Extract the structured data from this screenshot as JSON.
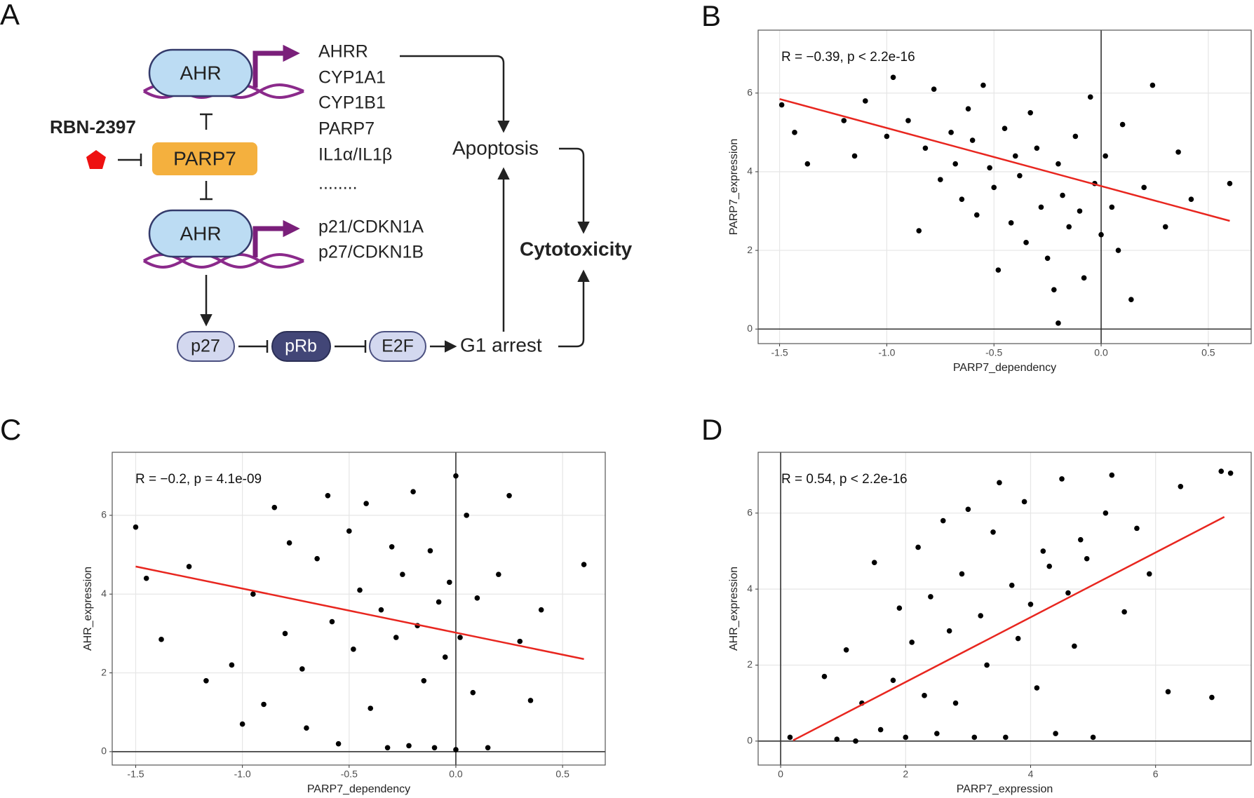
{
  "panel_labels": [
    "A",
    "B",
    "C",
    "D"
  ],
  "diagram": {
    "drug": "RBN-2397",
    "ahr_top": "AHR",
    "parp7": "PARP7",
    "ahr_bottom": "AHR",
    "genes_top": [
      "AHRR",
      "CYP1A1",
      "CYP1B1",
      "PARP7",
      "IL1α/IL1β",
      "........"
    ],
    "genes_bottom": [
      "p21/CDKN1A",
      "p27/CDKN1B"
    ],
    "pathway": [
      "p27",
      "pRb",
      "E2F",
      "G1 arrest"
    ],
    "apoptosis": "Apoptosis",
    "cytotoxicity": "Cytotoxicity"
  },
  "chart_data": [
    {
      "type": "scatter",
      "annotation": "R = −0.39, p < 2.2e-16",
      "x_label": "PARP7_dependency",
      "y_label": "PARP7_expression",
      "x": [
        -1.49,
        -1.43,
        -1.37,
        -1.2,
        -1.15,
        -1.1,
        -1.0,
        -0.97,
        -0.9,
        -0.85,
        -0.82,
        -0.78,
        -0.75,
        -0.7,
        -0.68,
        -0.65,
        -0.62,
        -0.6,
        -0.58,
        -0.55,
        -0.52,
        -0.5,
        -0.48,
        -0.45,
        -0.42,
        -0.4,
        -0.38,
        -0.35,
        -0.33,
        -0.3,
        -0.28,
        -0.25,
        -0.22,
        -0.2,
        -0.2,
        -0.18,
        -0.15,
        -0.12,
        -0.1,
        -0.08,
        -0.05,
        -0.03,
        0.0,
        0.02,
        0.05,
        0.08,
        0.1,
        0.14,
        0.2,
        0.24,
        0.3,
        0.36,
        0.42,
        0.6
      ],
      "values": [
        5.7,
        5.0,
        4.2,
        5.3,
        4.4,
        5.8,
        4.9,
        6.4,
        5.3,
        2.5,
        4.6,
        6.1,
        3.8,
        5.0,
        4.2,
        3.3,
        5.6,
        4.8,
        2.9,
        6.2,
        4.1,
        3.6,
        1.5,
        5.1,
        2.7,
        4.4,
        3.9,
        2.2,
        5.5,
        4.6,
        3.1,
        1.8,
        1.0,
        0.15,
        4.2,
        3.4,
        2.6,
        4.9,
        3.0,
        1.3,
        5.9,
        3.7,
        2.4,
        4.4,
        3.1,
        2.0,
        5.2,
        0.75,
        3.6,
        6.2,
        2.6,
        4.5,
        3.3,
        3.7
      ],
      "color": "#000000",
      "fit": {
        "x": [
          -1.5,
          0.6
        ],
        "y": [
          5.85,
          2.75
        ],
        "color": "#e8261f"
      },
      "xlim": [
        -1.6,
        0.7
      ],
      "ylim": [
        -0.37,
        7.6
      ],
      "xticks": [
        -1.5,
        {
          "value": -1,
          "label": "-1.0"
        },
        -0.5,
        {
          "value": 0,
          "label": "0.0"
        },
        0.5
      ],
      "yticks": [
        0,
        2,
        4,
        6
      ],
      "grid": true,
      "zero_lines": true
    },
    {
      "type": "scatter",
      "annotation": "R = −0.2, p = 4.1e-09",
      "x_label": "PARP7_dependency",
      "y_label": "AHR_expression",
      "x": [
        -1.5,
        -1.45,
        -1.38,
        -1.25,
        -1.17,
        -1.05,
        -1.0,
        -0.95,
        -0.9,
        -0.85,
        -0.8,
        -0.78,
        -0.72,
        -0.7,
        -0.65,
        -0.6,
        -0.58,
        -0.55,
        -0.5,
        -0.48,
        -0.45,
        -0.42,
        -0.4,
        -0.35,
        -0.32,
        -0.3,
        -0.28,
        -0.25,
        -0.22,
        -0.2,
        -0.18,
        -0.15,
        -0.12,
        -0.1,
        -0.08,
        -0.05,
        -0.03,
        0.0,
        0.0,
        0.02,
        0.05,
        0.08,
        0.1,
        0.15,
        0.2,
        0.25,
        0.3,
        0.35,
        0.4,
        0.6
      ],
      "values": [
        5.7,
        4.4,
        2.85,
        4.7,
        1.8,
        2.2,
        0.7,
        4.0,
        1.2,
        6.2,
        3.0,
        5.3,
        2.1,
        0.6,
        4.9,
        6.5,
        3.3,
        0.2,
        5.6,
        2.6,
        4.1,
        6.3,
        1.1,
        3.6,
        0.1,
        5.2,
        2.9,
        4.5,
        0.15,
        6.6,
        3.2,
        1.8,
        5.1,
        0.1,
        3.8,
        2.4,
        4.3,
        7.0,
        0.05,
        2.9,
        6.0,
        1.5,
        3.9,
        0.1,
        4.5,
        6.5,
        2.8,
        1.3,
        3.6,
        4.75
      ],
      "color": "#000000",
      "fit": {
        "x": [
          -1.5,
          0.6
        ],
        "y": [
          4.7,
          2.35
        ],
        "color": "#e8261f"
      },
      "xlim": [
        -1.61,
        0.7
      ],
      "ylim": [
        -0.34,
        7.6
      ],
      "xticks": [
        -1.5,
        {
          "value": -1,
          "label": "-1.0"
        },
        -0.5,
        {
          "value": 0,
          "label": "0.0"
        },
        0.5
      ],
      "yticks": [
        0,
        2,
        4,
        6
      ],
      "grid": true,
      "zero_lines": true
    },
    {
      "type": "scatter",
      "annotation": "R = 0.54, p < 2.2e-16",
      "x_label": "PARP7_expression",
      "y_label": "AHR_expression",
      "x": [
        0.15,
        0.7,
        0.9,
        1.05,
        1.2,
        1.3,
        1.5,
        1.6,
        1.8,
        1.9,
        2.0,
        2.1,
        2.2,
        2.3,
        2.4,
        2.5,
        2.6,
        2.7,
        2.8,
        2.9,
        3.0,
        3.1,
        3.2,
        3.3,
        3.4,
        3.5,
        3.6,
        3.7,
        3.8,
        3.9,
        4.0,
        4.1,
        4.2,
        4.3,
        4.4,
        4.5,
        4.6,
        4.7,
        4.8,
        4.9,
        5.0,
        5.2,
        5.3,
        5.5,
        5.7,
        5.9,
        6.2,
        6.4,
        6.9,
        7.05,
        7.2
      ],
      "values": [
        0.1,
        1.7,
        0.05,
        2.4,
        0.0,
        1.0,
        4.7,
        0.3,
        1.6,
        3.5,
        0.1,
        2.6,
        5.1,
        1.2,
        3.8,
        0.2,
        5.8,
        2.9,
        1.0,
        4.4,
        6.1,
        0.1,
        3.3,
        2.0,
        5.5,
        6.8,
        0.1,
        4.1,
        2.7,
        6.3,
        3.6,
        1.4,
        5.0,
        4.6,
        0.2,
        6.9,
        3.9,
        2.5,
        5.3,
        4.8,
        0.1,
        6.0,
        7.0,
        3.4,
        5.6,
        4.4,
        1.3,
        6.7,
        1.15,
        7.1,
        7.05
      ],
      "color": "#000000",
      "fit": {
        "x": [
          0.2,
          7.1
        ],
        "y": [
          0.02,
          5.9
        ],
        "color": "#e8261f"
      },
      "xlim": [
        -0.36,
        7.53
      ],
      "ylim": [
        -0.63,
        7.6
      ],
      "xticks": [
        0,
        2,
        4,
        6
      ],
      "yticks": [
        0,
        2,
        4,
        6
      ],
      "grid": true,
      "zero_lines": true
    }
  ]
}
